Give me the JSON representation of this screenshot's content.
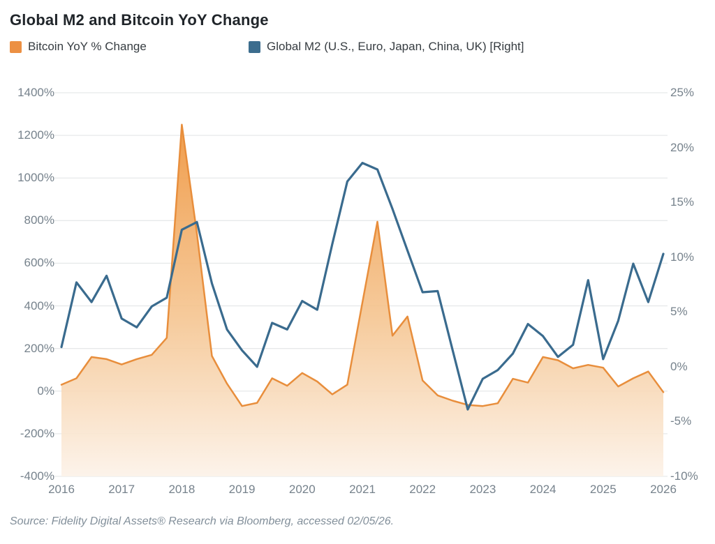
{
  "title": "Global M2 and Bitcoin YoY Change",
  "legend": [
    {
      "label": "Bitcoin YoY % Change",
      "color": "#EC9043"
    },
    {
      "label": "Global M2 (U.S., Euro, Japan, China, UK) [Right]",
      "color": "#3C6D8E"
    }
  ],
  "source": "Source: Fidelity Digital Assets® Research via Bloomberg, accessed 02/05/26.",
  "colors": {
    "bitcoin_line": "#E88E3C",
    "bitcoin_fill_top": "#EF9843",
    "bitcoin_fill_mid": "#F5C591",
    "bitcoin_fill_bottom": "#FCF2E8",
    "m2_line": "#3A6B8E",
    "gridline": "#E7E9EA",
    "axis_text": "#76828C"
  },
  "chart_data": {
    "type": "line",
    "title": "Global M2 and Bitcoin YoY Change",
    "x_min": 2016,
    "x_max": 2026,
    "x_tick_labels": [
      "2016",
      "2017",
      "2018",
      "2019",
      "2020",
      "2021",
      "2022",
      "2023",
      "2024",
      "2025",
      "2026"
    ],
    "x_tick_values": [
      2016,
      2017,
      2018,
      2019,
      2020,
      2021,
      2022,
      2023,
      2024,
      2025,
      2026
    ],
    "left_axis": {
      "min": -400,
      "max": 1400,
      "tick_labels": [
        "1400%",
        "1200%",
        "1000%",
        "800%",
        "600%",
        "400%",
        "200%",
        "0%",
        "-200%",
        "-400%"
      ],
      "tick_values": [
        1400,
        1200,
        1000,
        800,
        600,
        400,
        200,
        0,
        -200,
        -400
      ]
    },
    "right_axis": {
      "min": -10,
      "max": 25,
      "tick_labels": [
        "25%",
        "20%",
        "15%",
        "10%",
        "5%",
        "0%",
        "-5%",
        "-10%"
      ],
      "tick_values": [
        25,
        20,
        15,
        10,
        5,
        0,
        -5,
        -10
      ]
    },
    "grid": "horizontal-left-ticks",
    "legend_position": "top",
    "series": [
      {
        "name": "Bitcoin YoY % Change",
        "axis": "left",
        "style": "area",
        "x": [
          2016.0,
          2016.25,
          2016.5,
          2016.75,
          2017.0,
          2017.25,
          2017.5,
          2017.75,
          2018.0,
          2018.25,
          2018.5,
          2018.75,
          2019.0,
          2019.25,
          2019.5,
          2019.75,
          2020.0,
          2020.25,
          2020.5,
          2020.75,
          2021.0,
          2021.25,
          2021.5,
          2021.75,
          2022.0,
          2022.25,
          2022.5,
          2022.75,
          2023.0,
          2023.25,
          2023.5,
          2023.75,
          2024.0,
          2024.25,
          2024.5,
          2024.75,
          2025.0,
          2025.25,
          2025.5,
          2025.75,
          2026.0
        ],
        "values": [
          30,
          60,
          160,
          150,
          125,
          150,
          170,
          250,
          1250,
          740,
          165,
          35,
          -70,
          -55,
          60,
          25,
          85,
          45,
          -15,
          30,
          415,
          795,
          260,
          350,
          50,
          -20,
          -45,
          -65,
          -70,
          -57,
          58,
          40,
          160,
          145,
          107,
          123,
          110,
          22,
          60,
          92,
          -5
        ]
      },
      {
        "name": "Global M2 (U.S., Euro, Japan, China, UK) [Right]",
        "axis": "right",
        "style": "line",
        "x": [
          2016.0,
          2016.25,
          2016.5,
          2016.75,
          2017.0,
          2017.25,
          2017.5,
          2017.75,
          2018.0,
          2018.25,
          2018.5,
          2018.75,
          2019.0,
          2019.25,
          2019.5,
          2019.75,
          2020.0,
          2020.25,
          2020.5,
          2020.75,
          2021.0,
          2021.25,
          2021.5,
          2021.75,
          2022.0,
          2022.25,
          2022.5,
          2022.75,
          2023.0,
          2023.25,
          2023.5,
          2023.75,
          2024.0,
          2024.25,
          2024.5,
          2024.75,
          2025.0,
          2025.25,
          2025.5,
          2025.75,
          2026.0
        ],
        "values": [
          1.8,
          7.7,
          5.9,
          8.3,
          4.4,
          3.6,
          5.5,
          6.3,
          12.5,
          13.2,
          7.6,
          3.4,
          1.5,
          0.0,
          4.0,
          3.4,
          6.0,
          5.2,
          11.2,
          16.9,
          18.6,
          18.0,
          14.4,
          10.6,
          6.8,
          6.9,
          1.5,
          -3.9,
          -1.1,
          -0.3,
          1.2,
          3.9,
          2.8,
          0.9,
          2.0,
          7.9,
          0.7,
          4.2,
          9.4,
          5.9,
          10.3
        ]
      }
    ]
  }
}
